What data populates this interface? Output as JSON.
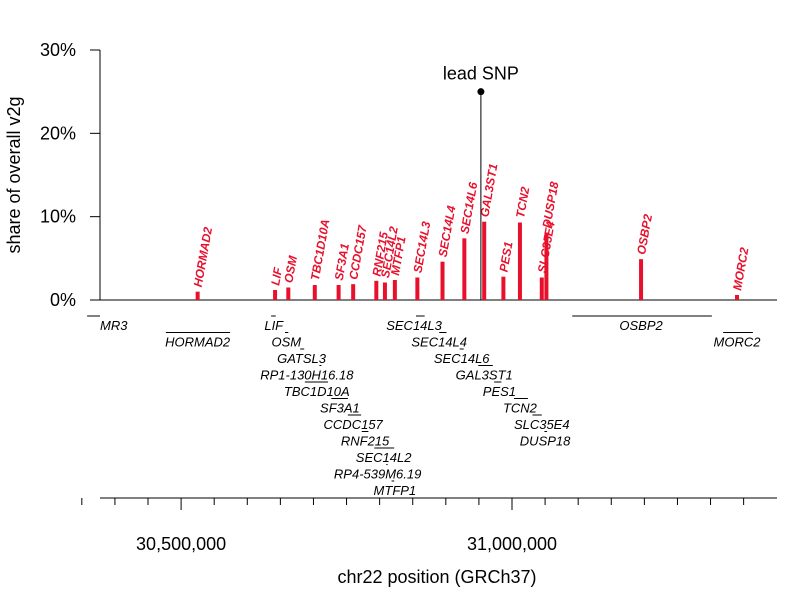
{
  "chart_data": {
    "type": "bar",
    "ylabel": "share of overall v2g",
    "xlabel": "chr22 position (GRCh37)",
    "ylim": [
      0,
      30
    ],
    "yticks": [
      0,
      10,
      20,
      30
    ],
    "ytick_labels": [
      "0%",
      "10%",
      "20%",
      "30%"
    ],
    "xlim": [
      30300000,
      31380000
    ],
    "xticks": [
      30500000,
      31000000
    ],
    "xtick_labels": [
      "30,500,000",
      "31,000,000"
    ],
    "minor_xticks": [
      30350000,
      30400000,
      30450000,
      30550000,
      30600000,
      30650000,
      30700000,
      30750000,
      30800000,
      30850000,
      30900000,
      30950000,
      31050000,
      31100000,
      31150000,
      31200000,
      31250000,
      31300000,
      31350000
    ],
    "bar_color": "#e8112d",
    "bars": [
      {
        "gene": "HORMAD2",
        "pos": 30525000,
        "value": 1.0
      },
      {
        "gene": "LIF",
        "pos": 30642000,
        "value": 1.2
      },
      {
        "gene": "OSM",
        "pos": 30662000,
        "value": 1.5
      },
      {
        "gene": "TBC1D10A",
        "pos": 30702000,
        "value": 1.8
      },
      {
        "gene": "SF3A1",
        "pos": 30738000,
        "value": 1.8
      },
      {
        "gene": "CCDC157",
        "pos": 30760000,
        "value": 1.9
      },
      {
        "gene": "RNF215",
        "pos": 30795000,
        "value": 2.3
      },
      {
        "gene": "SEC14L2",
        "pos": 30808000,
        "value": 2.1
      },
      {
        "gene": "MTFP1",
        "pos": 30823000,
        "value": 2.4
      },
      {
        "gene": "SEC14L3",
        "pos": 30857000,
        "value": 2.7
      },
      {
        "gene": "SEC14L4",
        "pos": 30895000,
        "value": 4.6
      },
      {
        "gene": "SEC14L6",
        "pos": 30928000,
        "value": 7.4
      },
      {
        "gene": "GAL3ST1",
        "pos": 30958000,
        "value": 9.4
      },
      {
        "gene": "PES1",
        "pos": 30987000,
        "value": 2.8
      },
      {
        "gene": "TCN2",
        "pos": 31012000,
        "value": 9.3
      },
      {
        "gene": "SLC35E4",
        "pos": 31045000,
        "value": 2.7
      },
      {
        "gene": "DUSP18",
        "pos": 31052000,
        "value": 8.1
      },
      {
        "gene": "OSBP2",
        "pos": 31195000,
        "value": 4.9
      },
      {
        "gene": "MORC2",
        "pos": 31340000,
        "value": 0.6
      }
    ],
    "lead_snp": {
      "label": "lead SNP",
      "pos": 30953000,
      "value": 25
    },
    "gene_tracks": [
      {
        "name": "MR3",
        "start": 30300000,
        "end": 30358000,
        "row": 0,
        "label_pos": 30323000
      },
      {
        "name": "HORMAD2",
        "start": 30477000,
        "end": 30574000,
        "row": 1,
        "label_pos": 30525000
      },
      {
        "name": "LIF",
        "start": 30636000,
        "end": 30643000,
        "row": 0,
        "label_pos": 30640000
      },
      {
        "name": "OSM",
        "start": 30657000,
        "end": 30662000,
        "row": 1,
        "label_pos": 30659000
      },
      {
        "name": "GATSL3",
        "start": 30680000,
        "end": 30686000,
        "row": 2,
        "label_pos": 30682000
      },
      {
        "name": "RP1-130H16.18",
        "start": 30709000,
        "end": 30712000,
        "row": 3,
        "label_pos": 30690000
      },
      {
        "name": "TBC1D10A",
        "start": 30687000,
        "end": 30722000,
        "row": 4,
        "label_pos": 30705000
      },
      {
        "name": "SF3A1",
        "start": 30727000,
        "end": 30752000,
        "row": 5,
        "label_pos": 30740000
      },
      {
        "name": "CCDC157",
        "start": 30752000,
        "end": 30772000,
        "row": 6,
        "label_pos": 30760000
      },
      {
        "name": "RNF215",
        "start": 30773000,
        "end": 30783000,
        "row": 7,
        "label_pos": 30778000
      },
      {
        "name": "SEC14L2",
        "start": 30792000,
        "end": 30822000,
        "row": 8,
        "label_pos": 30806000
      },
      {
        "name": "RP4-539M6.19",
        "start": 30810000,
        "end": 30812000,
        "row": 9,
        "label_pos": 30797000
      },
      {
        "name": "MTFP1",
        "start": 30818000,
        "end": 30822000,
        "row": 10,
        "label_pos": 30823000
      },
      {
        "name": "SEC14L3",
        "start": 30855000,
        "end": 30868000,
        "row": 0,
        "label_pos": 30852000
      },
      {
        "name": "SEC14L4",
        "start": 30890000,
        "end": 30901000,
        "row": 1,
        "label_pos": 30890000
      },
      {
        "name": "SEC14L6",
        "start": 30921000,
        "end": 30927000,
        "row": 2,
        "label_pos": 30924000
      },
      {
        "name": "GAL3ST1",
        "start": 30949000,
        "end": 30971000,
        "row": 3,
        "label_pos": 30958000
      },
      {
        "name": "PES1",
        "start": 30973000,
        "end": 30984000,
        "row": 4,
        "label_pos": 30981000
      },
      {
        "name": "TCN2",
        "start": 31003000,
        "end": 31024000,
        "row": 5,
        "label_pos": 31012000
      },
      {
        "name": "SLC35E4",
        "start": 31031000,
        "end": 31045000,
        "row": 6,
        "label_pos": 31045000
      },
      {
        "name": "DUSP18",
        "start": 31049000,
        "end": 31053000,
        "row": 7,
        "label_pos": 31050000
      },
      {
        "name": "OSBP2",
        "start": 31091000,
        "end": 31302000,
        "row": 0,
        "label_pos": 31195000
      },
      {
        "name": "MORC2",
        "start": 31319000,
        "end": 31364000,
        "row": 1,
        "label_pos": 31340000
      }
    ]
  }
}
